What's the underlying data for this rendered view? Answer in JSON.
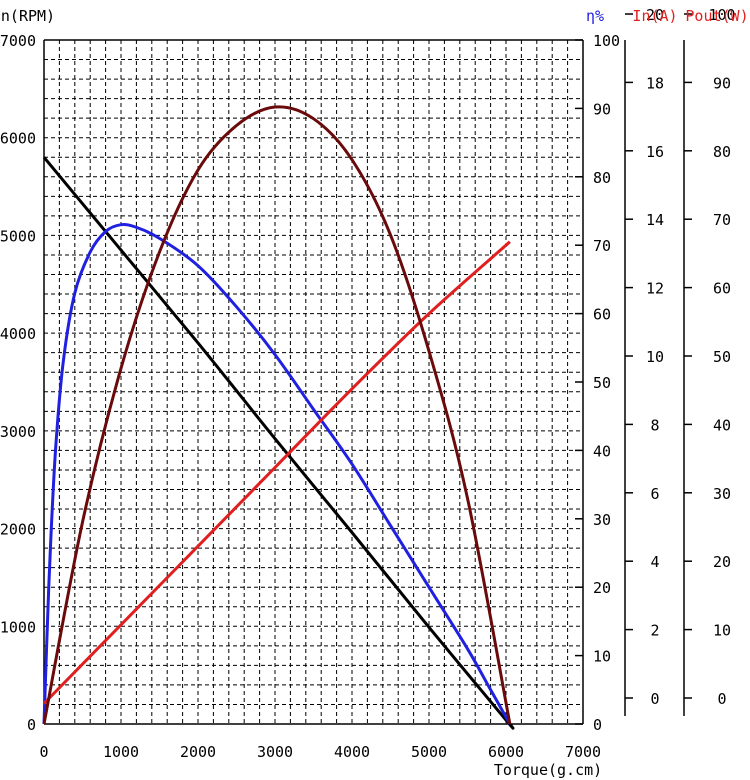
{
  "chart_data": {
    "type": "line",
    "x": {
      "label": "Torque(g.cm)",
      "range": [
        0,
        7000
      ],
      "ticks": [
        0,
        1000,
        2000,
        3000,
        4000,
        5000,
        6000,
        7000
      ]
    },
    "axes": {
      "speed": {
        "label": "n(RPM)",
        "range": [
          0,
          7000
        ],
        "ticks": [
          0,
          1000,
          2000,
          3000,
          4000,
          5000,
          6000,
          7000
        ],
        "color": "#000000"
      },
      "efficiency": {
        "label": "η%",
        "range": [
          0,
          100
        ],
        "ticks": [
          0,
          10,
          20,
          30,
          40,
          50,
          60,
          70,
          80,
          90,
          100
        ],
        "color": "#2020e0"
      },
      "current": {
        "label": "In(A)",
        "range": [
          0,
          20
        ],
        "ticks": [
          0,
          2,
          4,
          6,
          8,
          10,
          12,
          14,
          16,
          18,
          20
        ],
        "color": "#e02020"
      },
      "power": {
        "label": "Pout(W)",
        "range": [
          0,
          100
        ],
        "ticks": [
          0,
          10,
          20,
          30,
          40,
          50,
          60,
          70,
          80,
          90,
          100
        ],
        "color": "#e02020"
      }
    },
    "grid": true,
    "series": [
      {
        "axis": "speed",
        "color": "#000000",
        "points": [
          [
            0,
            5800
          ],
          [
            1000,
            4850
          ],
          [
            2000,
            3900
          ],
          [
            3000,
            2920
          ],
          [
            4000,
            1960
          ],
          [
            5000,
            990
          ],
          [
            6000,
            40
          ],
          [
            6050,
            0
          ]
        ]
      },
      {
        "axis": "efficiency",
        "color": "#2020e0",
        "points": [
          [
            0,
            0
          ],
          [
            30,
            10
          ],
          [
            80,
            25
          ],
          [
            150,
            40
          ],
          [
            250,
            53
          ],
          [
            400,
            63
          ],
          [
            600,
            69
          ],
          [
            800,
            72
          ],
          [
            1000,
            73
          ],
          [
            1200,
            72.6
          ],
          [
            1500,
            71
          ],
          [
            2000,
            67
          ],
          [
            2500,
            61
          ],
          [
            3000,
            54
          ],
          [
            3500,
            46
          ],
          [
            4000,
            38
          ],
          [
            4500,
            29
          ],
          [
            5000,
            20
          ],
          [
            5500,
            11
          ],
          [
            5800,
            5
          ],
          [
            6050,
            0
          ]
        ]
      },
      {
        "axis": "current",
        "color": "#e02020",
        "points": [
          [
            0,
            0.6
          ],
          [
            1000,
            2.9
          ],
          [
            2000,
            5.2
          ],
          [
            3000,
            7.5
          ],
          [
            4000,
            9.8
          ],
          [
            5000,
            12.0
          ],
          [
            6050,
            14.1
          ]
        ]
      },
      {
        "axis": "power",
        "color": "#6a0a0a",
        "points": [
          [
            0,
            0
          ],
          [
            500,
            29.5
          ],
          [
            1000,
            52
          ],
          [
            1500,
            69
          ],
          [
            2000,
            81
          ],
          [
            2500,
            87.5
          ],
          [
            3000,
            90.2
          ],
          [
            3500,
            88.5
          ],
          [
            4000,
            82.5
          ],
          [
            4500,
            71.5
          ],
          [
            5000,
            54.5
          ],
          [
            5500,
            33
          ],
          [
            6050,
            0
          ]
        ]
      }
    ]
  }
}
